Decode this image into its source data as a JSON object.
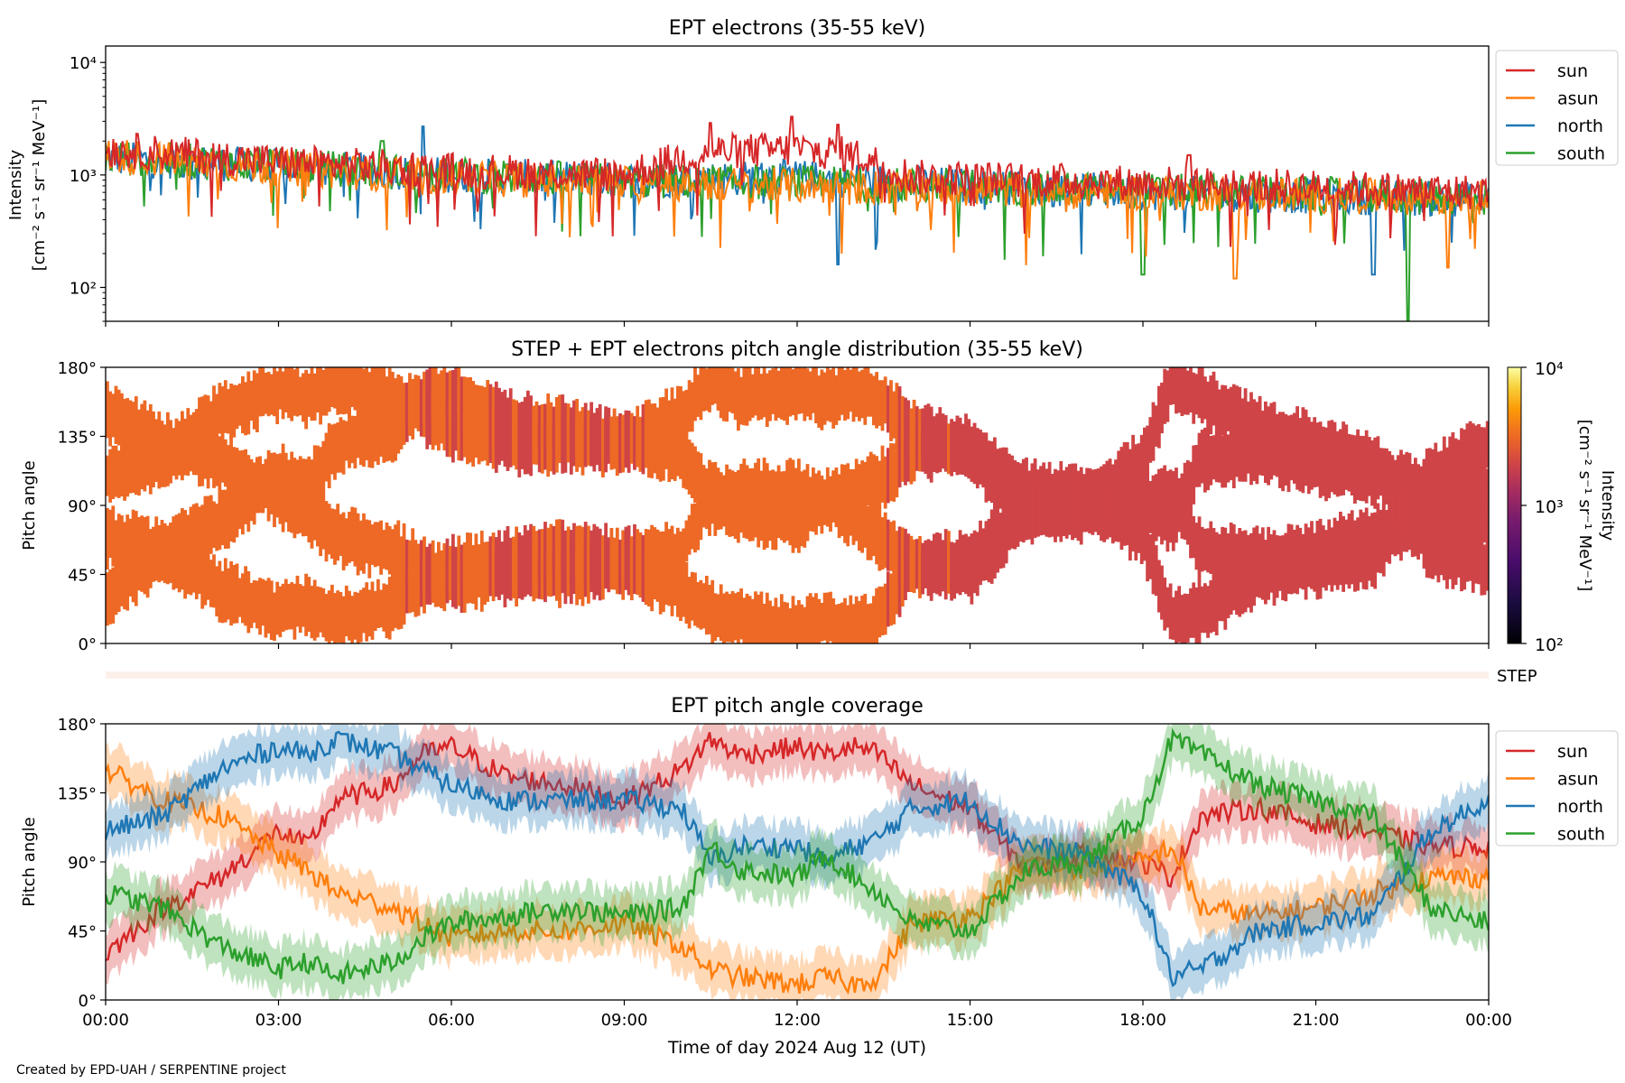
{
  "colors": {
    "sun": "#d62728",
    "asun": "#ff7f0e",
    "north": "#1f77b4",
    "south": "#2ca02c",
    "step_bar": "#fdf0ea"
  },
  "x_ticks": [
    "00:00",
    "03:00",
    "06:00",
    "09:00",
    "12:00",
    "15:00",
    "18:00",
    "21:00",
    "00:00"
  ],
  "xlabel": "Time of day 2024 Aug 12 (UT)",
  "footer": "Created by EPD-UAH / SERPENTINE project",
  "chart_data": [
    {
      "type": "line",
      "title": "EPT electrons (35-55 keV)",
      "ylabel_line1": "Intensity",
      "ylabel_line2": "[cm⁻² s⁻¹ sr⁻¹ MeV⁻¹]",
      "yscale": "log",
      "ylim": [
        50,
        14000
      ],
      "xlim_hours": [
        0,
        24
      ],
      "y_ticks": [
        "10²",
        "10³",
        "10⁴"
      ],
      "legend": [
        "sun",
        "asun",
        "north",
        "south"
      ],
      "legend_position": "outside top-right",
      "series": [
        {
          "name": "sun",
          "level_points": [
            [
              0,
              1700
            ],
            [
              3,
              1300
            ],
            [
              6,
              1100
            ],
            [
              9,
              1000
            ],
            [
              10.5,
              1600
            ],
            [
              12,
              1700
            ],
            [
              13,
              1500
            ],
            [
              14,
              950
            ],
            [
              18,
              850
            ],
            [
              24,
              700
            ]
          ],
          "events": [
            [
              10.5,
              2900
            ],
            [
              11.9,
              3300
            ],
            [
              12.7,
              2800
            ],
            [
              18.8,
              1500
            ]
          ]
        },
        {
          "name": "asun",
          "level_points": [
            [
              0,
              1500
            ],
            [
              3,
              1150
            ],
            [
              6,
              950
            ],
            [
              9,
              850
            ],
            [
              12,
              800
            ],
            [
              15,
              750
            ],
            [
              18,
              700
            ],
            [
              24,
              620
            ]
          ],
          "events": [
            [
              19.6,
              120
            ],
            [
              23.3,
              150
            ]
          ]
        },
        {
          "name": "north",
          "level_points": [
            [
              0,
              1400
            ],
            [
              3,
              1200
            ],
            [
              6,
              1000
            ],
            [
              9,
              900
            ],
            [
              12,
              950
            ],
            [
              15,
              800
            ],
            [
              18,
              700
            ],
            [
              24,
              600
            ]
          ],
          "events": [
            [
              5.5,
              2700
            ],
            [
              12.7,
              160
            ],
            [
              22.0,
              130
            ]
          ]
        },
        {
          "name": "south",
          "level_points": [
            [
              0,
              1450
            ],
            [
              3,
              1200
            ],
            [
              6,
              1000
            ],
            [
              9,
              880
            ],
            [
              12,
              850
            ],
            [
              15,
              780
            ],
            [
              18,
              720
            ],
            [
              24,
              620
            ]
          ],
          "events": [
            [
              4.8,
              2000
            ],
            [
              18.0,
              2100
            ],
            [
              18.0,
              130
            ],
            [
              22.6,
              50
            ]
          ]
        }
      ]
    },
    {
      "type": "heatmap",
      "title": "STEP + EPT electrons pitch angle distribution (35-55 keV)",
      "ylabel": "Pitch angle",
      "y_ticks": [
        "0°",
        "45°",
        "90°",
        "135°",
        "180°"
      ],
      "ylim": [
        0,
        180
      ],
      "colorbar": {
        "label_line1": "Intensity",
        "label_line2": "[cm⁻² s⁻¹ sr⁻¹ MeV⁻¹]",
        "ticks": [
          "10²",
          "10³",
          "10⁴"
        ],
        "scale": "log",
        "range": [
          100,
          10000
        ],
        "colormap": "inferno"
      },
      "step_label": "STEP"
    },
    {
      "type": "line",
      "title": "EPT pitch angle coverage",
      "ylabel": "Pitch angle",
      "y_ticks": [
        "0°",
        "45°",
        "90°",
        "135°",
        "180°"
      ],
      "ylim": [
        0,
        180
      ],
      "legend": [
        "sun",
        "asun",
        "north",
        "south"
      ],
      "legend_position": "outside top-right",
      "shaded_band_width_deg": 16,
      "series": [
        {
          "name": "sun",
          "points": [
            [
              0,
              30
            ],
            [
              0.5,
              45
            ],
            [
              1,
              60
            ],
            [
              2,
              80
            ],
            [
              3,
              110
            ],
            [
              3.5,
              100
            ],
            [
              4,
              130
            ],
            [
              5,
              140
            ],
            [
              5.5,
              160
            ],
            [
              6,
              165
            ],
            [
              7,
              145
            ],
            [
              8,
              140
            ],
            [
              9,
              130
            ],
            [
              10,
              150
            ],
            [
              10.5,
              170
            ],
            [
              11,
              160
            ],
            [
              12,
              165
            ],
            [
              12.5,
              160
            ],
            [
              13,
              165
            ],
            [
              13.4,
              160
            ],
            [
              14,
              140
            ],
            [
              15,
              125
            ],
            [
              15.6,
              100
            ],
            [
              16,
              85
            ],
            [
              17,
              95
            ],
            [
              18,
              90
            ],
            [
              18.5,
              80
            ],
            [
              19,
              120
            ],
            [
              20,
              125
            ],
            [
              21,
              115
            ],
            [
              22,
              110
            ],
            [
              23,
              100
            ],
            [
              24,
              100
            ]
          ]
        },
        {
          "name": "asun",
          "points": [
            [
              0,
              150
            ],
            [
              0.5,
              140
            ],
            [
              1,
              130
            ],
            [
              2,
              120
            ],
            [
              3,
              95
            ],
            [
              3.5,
              85
            ],
            [
              4,
              70
            ],
            [
              5,
              60
            ],
            [
              5.5,
              50
            ],
            [
              6,
              40
            ],
            [
              7,
              45
            ],
            [
              8,
              45
            ],
            [
              9,
              50
            ],
            [
              10,
              35
            ],
            [
              10.5,
              20
            ],
            [
              11,
              15
            ],
            [
              12,
              10
            ],
            [
              12.5,
              15
            ],
            [
              13,
              10
            ],
            [
              13.4,
              15
            ],
            [
              14,
              50
            ],
            [
              15,
              55
            ],
            [
              15.6,
              75
            ],
            [
              16,
              90
            ],
            [
              17,
              85
            ],
            [
              18,
              90
            ],
            [
              18.5,
              100
            ],
            [
              19,
              60
            ],
            [
              20,
              55
            ],
            [
              21,
              60
            ],
            [
              22,
              70
            ],
            [
              23,
              80
            ],
            [
              24,
              80
            ]
          ]
        },
        {
          "name": "north",
          "points": [
            [
              0,
              110
            ],
            [
              0.5,
              115
            ],
            [
              1,
              120
            ],
            [
              2,
              150
            ],
            [
              3,
              165
            ],
            [
              3.5,
              160
            ],
            [
              4,
              170
            ],
            [
              5,
              160
            ],
            [
              5.5,
              150
            ],
            [
              6,
              140
            ],
            [
              7,
              130
            ],
            [
              8,
              130
            ],
            [
              9,
              130
            ],
            [
              10,
              125
            ],
            [
              10.5,
              90
            ],
            [
              11,
              100
            ],
            [
              12,
              100
            ],
            [
              12.5,
              90
            ],
            [
              13,
              100
            ],
            [
              13.4,
              105
            ],
            [
              14,
              125
            ],
            [
              15,
              130
            ],
            [
              15.6,
              110
            ],
            [
              16,
              100
            ],
            [
              17,
              95
            ],
            [
              18,
              70
            ],
            [
              18.5,
              15
            ],
            [
              19,
              20
            ],
            [
              20,
              45
            ],
            [
              21,
              50
            ],
            [
              22,
              55
            ],
            [
              23,
              110
            ],
            [
              24,
              130
            ]
          ]
        },
        {
          "name": "south",
          "points": [
            [
              0,
              70
            ],
            [
              0.5,
              65
            ],
            [
              1,
              60
            ],
            [
              2,
              35
            ],
            [
              3,
              20
            ],
            [
              3.5,
              25
            ],
            [
              4,
              15
            ],
            [
              5,
              25
            ],
            [
              5.5,
              40
            ],
            [
              6,
              50
            ],
            [
              7,
              55
            ],
            [
              8,
              60
            ],
            [
              9,
              55
            ],
            [
              10,
              60
            ],
            [
              10.5,
              100
            ],
            [
              11,
              85
            ],
            [
              12,
              80
            ],
            [
              12.5,
              95
            ],
            [
              13,
              80
            ],
            [
              13.4,
              70
            ],
            [
              14,
              50
            ],
            [
              15,
              45
            ],
            [
              15.6,
              70
            ],
            [
              16,
              85
            ],
            [
              17,
              90
            ],
            [
              18,
              120
            ],
            [
              18.5,
              170
            ],
            [
              19,
              160
            ],
            [
              20,
              140
            ],
            [
              21,
              130
            ],
            [
              22,
              120
            ],
            [
              23,
              60
            ],
            [
              24,
              50
            ]
          ]
        }
      ]
    }
  ]
}
